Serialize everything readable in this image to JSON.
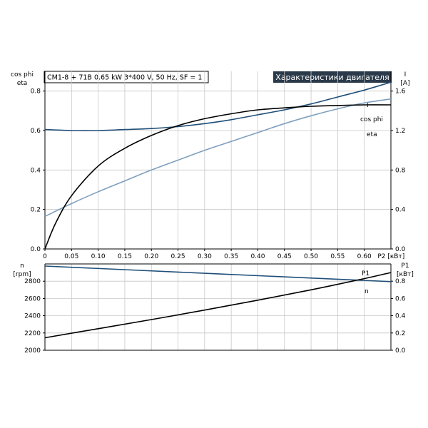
{
  "header": {
    "info": "CM1-8 + 71B   0.65 kW   3*400 V, 50 Hz, SF = 1",
    "title": "Характеристики двигателя"
  },
  "colors": {
    "background": "#ffffff",
    "grid": "#c8c8c8",
    "axis": "#000000",
    "title_bg": "#2b3a4a",
    "I": "#1f4e79",
    "cos_phi": "#7f9fbf",
    "eta": "#000000",
    "n": "#1f4e79",
    "P1": "#000000"
  },
  "chart_data": [
    {
      "type": "line",
      "x_unit_label": "P2 [кВт]",
      "x_ticks": [
        "0",
        "0.05",
        "0.10",
        "0.15",
        "0.20",
        "0.25",
        "0.30",
        "0.35",
        "0.40",
        "0.45",
        "0.50",
        "0.55",
        "0.60"
      ],
      "xlim": [
        0,
        0.65
      ],
      "grid": true,
      "left_axis": {
        "label_line1": "cos phi",
        "label_line2": "eta",
        "ylim": [
          0,
          0.9
        ],
        "ticks": [
          "0.0",
          "0.2",
          "0.4",
          "0.6",
          "0.8"
        ]
      },
      "right_axis": {
        "label_line1": "I",
        "label_line2": "[A]",
        "ylim": [
          0,
          1.8
        ],
        "ticks": [
          "0.0",
          "0.4",
          "0.8",
          "1.2",
          "1.6"
        ]
      },
      "series": [
        {
          "name": "I",
          "axis": "right",
          "x": [
            0,
            0.05,
            0.1,
            0.15,
            0.2,
            0.25,
            0.3,
            0.35,
            0.4,
            0.45,
            0.5,
            0.55,
            0.6,
            0.65
          ],
          "y": [
            1.21,
            1.2,
            1.2,
            1.21,
            1.22,
            1.24,
            1.27,
            1.31,
            1.36,
            1.41,
            1.47,
            1.54,
            1.61,
            1.69
          ]
        },
        {
          "name": "cos phi",
          "axis": "left",
          "x": [
            0,
            0.05,
            0.1,
            0.15,
            0.2,
            0.25,
            0.3,
            0.35,
            0.4,
            0.45,
            0.5,
            0.55,
            0.6,
            0.65
          ],
          "y": [
            0.165,
            0.23,
            0.29,
            0.345,
            0.4,
            0.45,
            0.5,
            0.545,
            0.59,
            0.635,
            0.675,
            0.71,
            0.74,
            0.76
          ]
        },
        {
          "name": "eta",
          "axis": "left",
          "x": [
            0,
            0.02,
            0.05,
            0.1,
            0.15,
            0.2,
            0.25,
            0.3,
            0.35,
            0.4,
            0.45,
            0.5,
            0.55,
            0.6,
            0.65
          ],
          "y": [
            0,
            0.13,
            0.27,
            0.42,
            0.51,
            0.575,
            0.625,
            0.66,
            0.685,
            0.705,
            0.715,
            0.723,
            0.727,
            0.73,
            0.73
          ]
        }
      ]
    },
    {
      "type": "line",
      "xlim": [
        0,
        0.65
      ],
      "grid": true,
      "left_axis": {
        "label_line1": "n",
        "label_line2": "[rpm]",
        "ylim": [
          2000,
          3000
        ],
        "ticks": [
          "2000",
          "2200",
          "2400",
          "2600",
          "2800"
        ]
      },
      "right_axis": {
        "label_line1": "P1",
        "label_line2": "[кВт]",
        "ylim": [
          0,
          1.0
        ],
        "ticks": [
          "0.0",
          "0.2",
          "0.4",
          "0.6",
          "0.8"
        ]
      },
      "series": [
        {
          "name": "n",
          "axis": "left",
          "x": [
            0,
            0.65
          ],
          "y": [
            2975,
            2795
          ]
        },
        {
          "name": "P1",
          "axis": "right",
          "x": [
            0,
            0.1,
            0.2,
            0.3,
            0.4,
            0.5,
            0.6,
            0.65
          ],
          "y": [
            0.145,
            0.25,
            0.355,
            0.465,
            0.58,
            0.7,
            0.83,
            0.9
          ]
        }
      ]
    }
  ]
}
